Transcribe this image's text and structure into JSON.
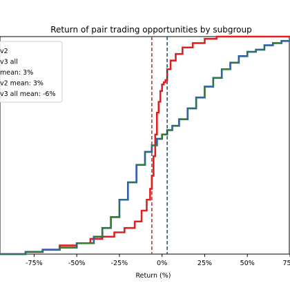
{
  "chart_data": {
    "type": "line",
    "title": "Return of pair trading opportunities by subgroup",
    "xlabel": "Return (%)",
    "ylabel": "",
    "xlim": [
      -95,
      75
    ],
    "ylim": [
      0,
      1
    ],
    "grid": false,
    "legend_position": "top-left",
    "x_ticks": [
      {
        "value": -75,
        "label": "-75%"
      },
      {
        "value": -50,
        "label": "-50%"
      },
      {
        "value": -25,
        "label": "-25%"
      },
      {
        "value": 0,
        "label": "0%"
      },
      {
        "value": 25,
        "label": "25%"
      },
      {
        "value": 50,
        "label": "50%"
      },
      {
        "value": 75,
        "label": "75%"
      }
    ],
    "legend": [
      {
        "label": "v2",
        "color": "#1f3fbf",
        "dashed": false
      },
      {
        "label": "v3 all",
        "color": "#2e8b2e",
        "dashed": false
      },
      {
        "label": "mean: 3%",
        "color": "#1f3fbf",
        "dashed": true
      },
      {
        "label": "v2 mean: 3%",
        "color": "#1a6b3a",
        "dashed": true
      },
      {
        "label": "v3 all mean: -6%",
        "color": "#e02020",
        "dashed": true
      }
    ],
    "vlines": [
      {
        "x": -6,
        "color": "#e02020"
      },
      {
        "x": 3,
        "color": "#1a4a6b"
      }
    ],
    "series": [
      {
        "color": "#e02020",
        "points": [
          [
            -95,
            0.0
          ],
          [
            -80,
            0.01
          ],
          [
            -70,
            0.02
          ],
          [
            -60,
            0.04
          ],
          [
            -50,
            0.05
          ],
          [
            -42,
            0.07
          ],
          [
            -35,
            0.08
          ],
          [
            -28,
            0.1
          ],
          [
            -22,
            0.12
          ],
          [
            -16,
            0.15
          ],
          [
            -12,
            0.2
          ],
          [
            -9,
            0.25
          ],
          [
            -7,
            0.3
          ],
          [
            -6,
            0.36
          ],
          [
            -5,
            0.45
          ],
          [
            -4,
            0.55
          ],
          [
            -3,
            0.65
          ],
          [
            -2,
            0.7
          ],
          [
            -1,
            0.75
          ],
          [
            0,
            0.78
          ],
          [
            1,
            0.79
          ],
          [
            2,
            0.8
          ],
          [
            3,
            0.85
          ],
          [
            5,
            0.89
          ],
          [
            8,
            0.92
          ],
          [
            12,
            0.95
          ],
          [
            18,
            0.97
          ],
          [
            25,
            0.99
          ],
          [
            32,
            1.0
          ],
          [
            75,
            1.0
          ]
        ]
      },
      {
        "color": "#1f3fbf",
        "points": [
          [
            -95,
            0.0
          ],
          [
            -80,
            0.01
          ],
          [
            -70,
            0.02
          ],
          [
            -60,
            0.03
          ],
          [
            -50,
            0.05
          ],
          [
            -40,
            0.08
          ],
          [
            -35,
            0.12
          ],
          [
            -30,
            0.17
          ],
          [
            -25,
            0.25
          ],
          [
            -20,
            0.33
          ],
          [
            -15,
            0.41
          ],
          [
            -10,
            0.47
          ],
          [
            -6,
            0.5
          ],
          [
            -3,
            0.53
          ],
          [
            0,
            0.55
          ],
          [
            3,
            0.57
          ],
          [
            6,
            0.59
          ],
          [
            10,
            0.62
          ],
          [
            15,
            0.67
          ],
          [
            20,
            0.72
          ],
          [
            25,
            0.77
          ],
          [
            30,
            0.81
          ],
          [
            35,
            0.85
          ],
          [
            40,
            0.88
          ],
          [
            45,
            0.91
          ],
          [
            50,
            0.93
          ],
          [
            55,
            0.94
          ],
          [
            60,
            0.96
          ],
          [
            65,
            0.97
          ],
          [
            70,
            0.98
          ],
          [
            75,
            0.99
          ]
        ]
      },
      {
        "color": "#2e8b2e",
        "points": [
          [
            -95,
            0.0
          ],
          [
            -80,
            0.01
          ],
          [
            -70,
            0.02
          ],
          [
            -60,
            0.03
          ],
          [
            -50,
            0.05
          ],
          [
            -40,
            0.08
          ],
          [
            -35,
            0.12
          ],
          [
            -30,
            0.17
          ],
          [
            -25,
            0.25
          ],
          [
            -20,
            0.33
          ],
          [
            -15,
            0.41
          ],
          [
            -10,
            0.47
          ],
          [
            -6,
            0.5
          ],
          [
            -3,
            0.53
          ],
          [
            0,
            0.55
          ],
          [
            3,
            0.57
          ],
          [
            6,
            0.59
          ],
          [
            10,
            0.62
          ],
          [
            15,
            0.67
          ],
          [
            20,
            0.72
          ],
          [
            25,
            0.77
          ],
          [
            30,
            0.81
          ],
          [
            35,
            0.85
          ],
          [
            40,
            0.88
          ],
          [
            45,
            0.91
          ],
          [
            50,
            0.93
          ],
          [
            55,
            0.94
          ],
          [
            60,
            0.96
          ],
          [
            65,
            0.97
          ],
          [
            70,
            0.98
          ],
          [
            75,
            0.99
          ]
        ]
      }
    ]
  }
}
